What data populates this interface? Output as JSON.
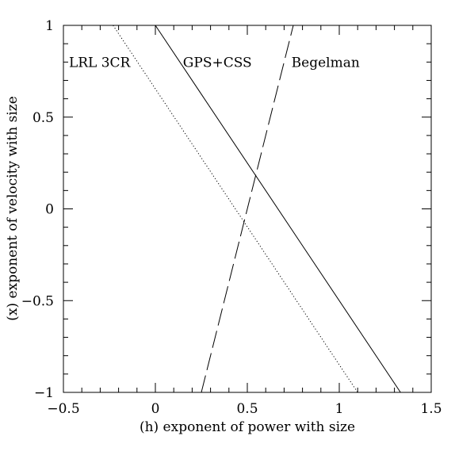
{
  "chart_data": {
    "type": "line",
    "title": "",
    "xlabel": "(h) exponent of power with size",
    "ylabel": "(x) exponent of velocity with size",
    "xlim": [
      -0.5,
      1.5
    ],
    "ylim": [
      -1,
      1
    ],
    "x_ticks": [
      {
        "value": -0.5,
        "label": "−0.5"
      },
      {
        "value": 0,
        "label": "0"
      },
      {
        "value": 0.5,
        "label": "0.5"
      },
      {
        "value": 1,
        "label": "1"
      },
      {
        "value": 1.5,
        "label": "1.5"
      }
    ],
    "y_ticks": [
      {
        "value": -1,
        "label": "−1"
      },
      {
        "value": -0.5,
        "label": "−0.5"
      },
      {
        "value": 0,
        "label": "0"
      },
      {
        "value": 0.5,
        "label": "0.5"
      },
      {
        "value": 1,
        "label": "1"
      }
    ],
    "grid": false,
    "series": [
      {
        "name": "GPS+CSS",
        "style": "solid",
        "points": [
          [
            0,
            1
          ],
          [
            1.333,
            -1
          ]
        ],
        "label_pos": [
          0.15,
          0.8
        ]
      },
      {
        "name": "LRL 3CR",
        "style": "dotted",
        "points": [
          [
            -0.23,
            1
          ],
          [
            1.1,
            -1
          ]
        ],
        "label_pos": [
          -0.47,
          0.8
        ]
      },
      {
        "name": "Begelman",
        "style": "dashed",
        "points": [
          [
            0.25,
            -1
          ],
          [
            0.75,
            1
          ]
        ],
        "label_pos": [
          0.74,
          0.8
        ]
      }
    ]
  }
}
